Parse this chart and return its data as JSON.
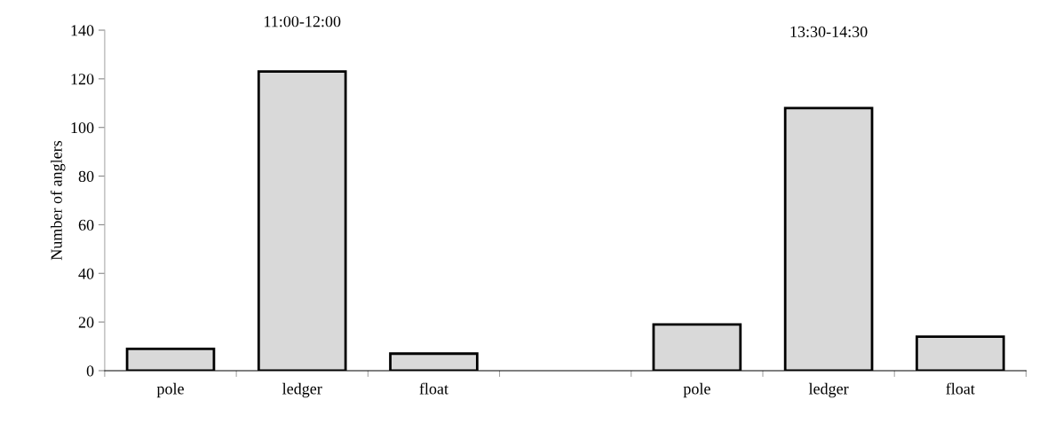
{
  "chart_data": {
    "type": "bar",
    "ylabel": "Number of anglers",
    "categories": [
      "pole",
      "ledger",
      "float",
      null,
      "pole",
      "ledger",
      "float"
    ],
    "values": [
      9,
      123,
      7,
      null,
      19,
      108,
      14
    ],
    "color": "#d9d9d9",
    "ylim": [
      0,
      140
    ],
    "yticks": [
      0,
      20,
      40,
      60,
      80,
      100,
      120,
      140
    ],
    "grid": false,
    "legend": false,
    "annotations": [
      "11:00-12:00",
      "13:30-14:30"
    ]
  }
}
